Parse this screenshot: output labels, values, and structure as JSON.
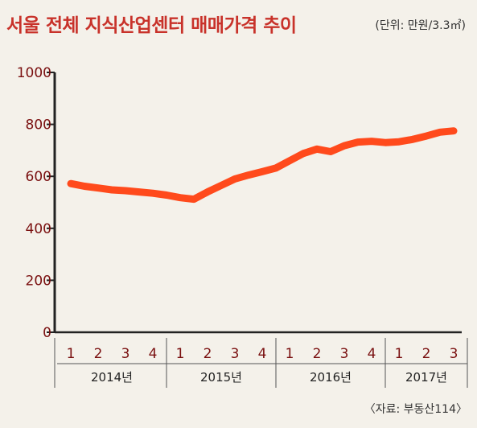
{
  "header": {
    "title": "서울 전체 지식산업센터 매매가격 추이",
    "unit": "(단위: 만원/3.3㎡)"
  },
  "footer": {
    "source": "〈자료: 부동산114〉"
  },
  "colors": {
    "line": "#ff4a1c",
    "title": "#c8322a",
    "axis_text": "#7a1010"
  },
  "chart_data": {
    "type": "line",
    "title": "서울 전체 지식산업센터 매매가격 추이",
    "xlabel": "",
    "ylabel": "",
    "ylim": [
      0,
      1000
    ],
    "yticks": [
      0,
      200,
      400,
      600,
      800,
      1000
    ],
    "grid": false,
    "quarters": [
      {
        "year": "2014년",
        "labels": [
          "1",
          "2",
          "3",
          "4"
        ]
      },
      {
        "year": "2015년",
        "labels": [
          "1",
          "2",
          "3",
          "4"
        ]
      },
      {
        "year": "2016년",
        "labels": [
          "1",
          "2",
          "3",
          "4"
        ]
      },
      {
        "year": "2017년",
        "labels": [
          "1",
          "2",
          "3"
        ]
      }
    ],
    "series": [
      {
        "x": [
          1,
          1.5,
          2,
          2.5,
          3,
          3.5,
          4,
          4.5,
          5,
          5.5,
          6,
          6.5,
          7,
          7.5,
          8,
          8.5,
          9,
          9.5,
          10,
          10.5,
          11,
          11.5,
          12,
          12.5,
          13,
          13.5,
          14,
          14.5,
          15
        ],
        "values": [
          572,
          562,
          555,
          548,
          545,
          540,
          535,
          528,
          518,
          512,
          540,
          565,
          590,
          605,
          618,
          632,
          660,
          688,
          705,
          695,
          718,
          732,
          735,
          730,
          733,
          742,
          755,
          770,
          775
        ]
      }
    ]
  }
}
